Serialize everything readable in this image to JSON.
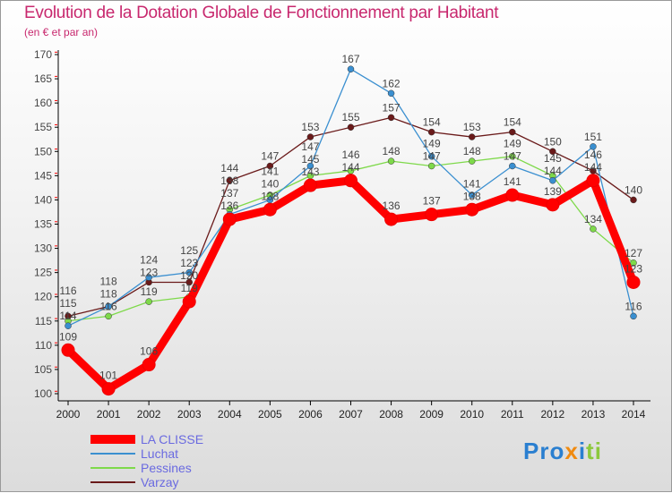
{
  "chart_data": {
    "type": "line",
    "title": "Evolution de la Dotation Globale de Fonctionnement par Habitant",
    "subtitle": "(en € et par an)",
    "x": [
      "2000",
      "2001",
      "2002",
      "2003",
      "2004",
      "2005",
      "2006",
      "2007",
      "2008",
      "2009",
      "2010",
      "2011",
      "2012",
      "2013",
      "2014"
    ],
    "ylim": [
      100,
      170
    ],
    "yticks": [
      100,
      105,
      110,
      115,
      120,
      125,
      130,
      135,
      140,
      145,
      150,
      155,
      160,
      165,
      170
    ],
    "legend_position": "bottom-left",
    "series": [
      {
        "name": "LA CLISSE",
        "color": "#ff0000",
        "values": [
          109,
          101,
          106,
          119,
          136,
          138,
          143,
          144,
          136,
          137,
          138,
          141,
          139,
          144,
          123
        ]
      },
      {
        "name": "Luchat",
        "color": "#3a8fd0",
        "values": [
          114,
          118,
          124,
          125,
          137,
          140,
          147,
          167,
          162,
          149,
          141,
          147,
          144,
          151,
          116
        ]
      },
      {
        "name": "Pessines",
        "color": "#7ed94a",
        "values": [
          115,
          116,
          119,
          120,
          138,
          141,
          145,
          146,
          148,
          147,
          148,
          149,
          145,
          134,
          127
        ]
      },
      {
        "name": "Varzay",
        "color": "#6a1a1a",
        "values": [
          116,
          118,
          123,
          123,
          144,
          147,
          153,
          155,
          157,
          154,
          153,
          154,
          150,
          146,
          140
        ]
      }
    ]
  },
  "logo": "Proxiti"
}
